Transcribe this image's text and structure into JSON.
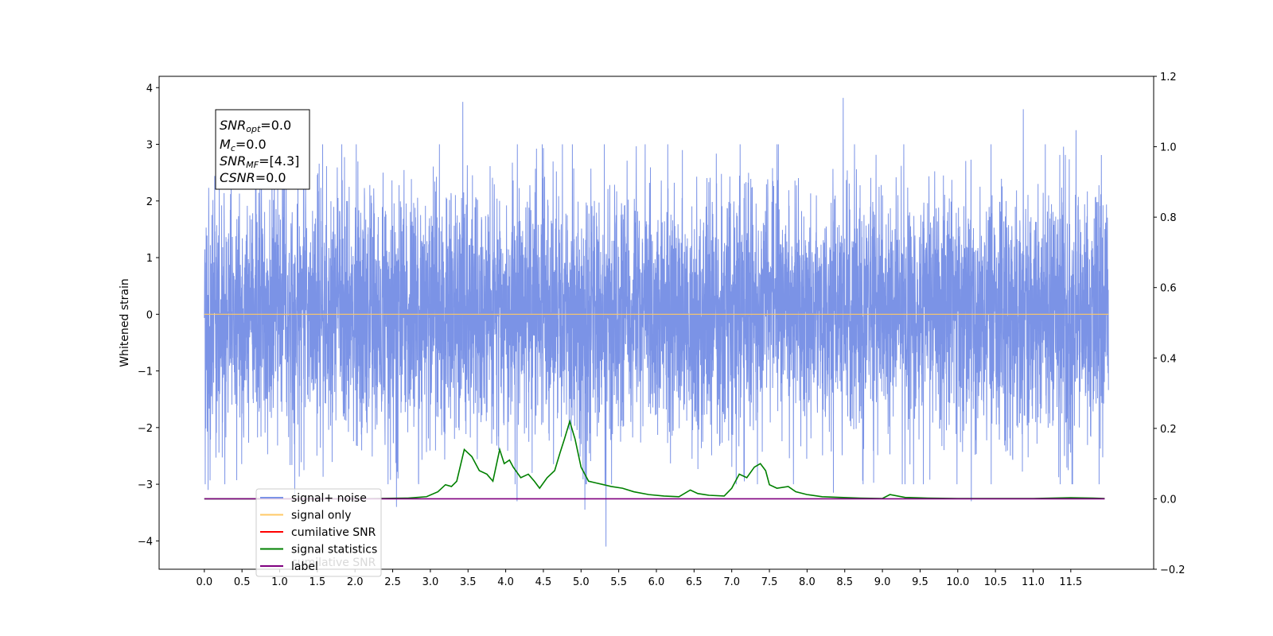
{
  "chart_data": {
    "type": "line",
    "xlabel": "",
    "ylabel": "Whitened strain",
    "y2label": "",
    "xlim": [
      -0.6,
      12.6
    ],
    "ylim": [
      -4.5,
      4.2
    ],
    "y2lim": [
      -0.2,
      1.2
    ],
    "grid": false,
    "legend_position": "lower-left",
    "x_ticks": [
      "0.0",
      "0.5",
      "1.0",
      "1.5",
      "2.0",
      "2.5",
      "3.0",
      "3.5",
      "4.0",
      "4.5",
      "5.0",
      "5.5",
      "6.0",
      "6.5",
      "7.0",
      "7.5",
      "8.0",
      "8.5",
      "9.0",
      "9.5",
      "10.0",
      "10.5",
      "11.0",
      "11.5"
    ],
    "y_ticks": [
      "−4",
      "−3",
      "−2",
      "−1",
      "0",
      "1",
      "2",
      "3",
      "4"
    ],
    "y_tick_values": [
      -4,
      -3,
      -2,
      -1,
      0,
      1,
      2,
      3,
      4
    ],
    "y2_ticks": [
      "−0.2",
      "0.0",
      "0.2",
      "0.4",
      "0.6",
      "0.8",
      "1.0",
      "1.2"
    ],
    "y2_tick_values": [
      -0.2,
      0.0,
      0.2,
      0.4,
      0.6,
      0.8,
      1.0,
      1.2
    ],
    "annotation": {
      "snr_opt": "=0.0",
      "mc": "=0.0",
      "snr_mf": "=[4.3]",
      "csnr": "=0.0"
    },
    "legend": [
      {
        "label": "signal+ noise",
        "color": "#7b93e6"
      },
      {
        "label": "signal only",
        "color": "#ffc966"
      },
      {
        "label": "cumilative SNR",
        "color": "#ff0000"
      },
      {
        "label": "signal statistics",
        "color": "#008000"
      },
      {
        "label": "label",
        "color": "#800080"
      }
    ],
    "hidden_legend_text": "cumilative SNR",
    "series": [
      {
        "name": "signal+ noise",
        "axis": "left",
        "color": "#7b93e6",
        "x_range": [
          0.0,
          12.0
        ],
        "typical_amplitude": 1.3,
        "peaks": [
          {
            "x": 3.43,
            "y": 3.75
          },
          {
            "x": 5.33,
            "y": 3.55
          },
          {
            "x": 8.48,
            "y": 3.82
          },
          {
            "x": 10.87,
            "y": 3.62
          },
          {
            "x": 11.57,
            "y": 3.25
          },
          {
            "x": 5.33,
            "y": -4.1
          },
          {
            "x": 2.55,
            "y": -3.4
          },
          {
            "x": 5.05,
            "y": -3.45
          },
          {
            "x": 10.18,
            "y": -3.3
          },
          {
            "x": 4.15,
            "y": -3.3
          },
          {
            "x": 1.2,
            "y": -3.2
          },
          {
            "x": 8.35,
            "y": -3.15
          },
          {
            "x": 0.05,
            "y": -3.1
          }
        ]
      },
      {
        "name": "signal only",
        "axis": "left",
        "color": "#ffc966",
        "x": [
          0.0,
          12.0
        ],
        "y": [
          0.0,
          0.0
        ]
      },
      {
        "name": "signal statistics",
        "axis": "right",
        "color": "#008000",
        "x": [
          0.0,
          1.0,
          2.0,
          2.7,
          2.95,
          3.1,
          3.2,
          3.28,
          3.35,
          3.45,
          3.55,
          3.65,
          3.75,
          3.83,
          3.92,
          3.98,
          4.05,
          4.1,
          4.2,
          4.3,
          4.38,
          4.45,
          4.55,
          4.65,
          4.72,
          4.78,
          4.85,
          4.92,
          5.0,
          5.1,
          5.2,
          5.3,
          5.4,
          5.55,
          5.7,
          5.9,
          6.1,
          6.3,
          6.45,
          6.55,
          6.7,
          6.9,
          7.0,
          7.1,
          7.2,
          7.3,
          7.38,
          7.45,
          7.5,
          7.6,
          7.75,
          7.85,
          8.0,
          8.2,
          8.45,
          8.7,
          9.0,
          9.1,
          9.3,
          9.6,
          10.0,
          10.5,
          11.0,
          11.5,
          11.8,
          11.95
        ],
        "y": [
          0.0,
          0.0,
          0.0,
          0.002,
          0.006,
          0.02,
          0.04,
          0.035,
          0.05,
          0.14,
          0.12,
          0.08,
          0.07,
          0.05,
          0.14,
          0.1,
          0.11,
          0.09,
          0.06,
          0.07,
          0.05,
          0.03,
          0.06,
          0.08,
          0.13,
          0.17,
          0.22,
          0.17,
          0.09,
          0.05,
          0.045,
          0.04,
          0.035,
          0.03,
          0.02,
          0.012,
          0.008,
          0.006,
          0.025,
          0.015,
          0.01,
          0.008,
          0.03,
          0.07,
          0.06,
          0.09,
          0.1,
          0.08,
          0.04,
          0.03,
          0.035,
          0.02,
          0.012,
          0.006,
          0.004,
          0.002,
          0.001,
          0.012,
          0.004,
          0.002,
          0.001,
          0.001,
          0.001,
          0.003,
          0.002,
          0.001
        ]
      },
      {
        "name": "label",
        "axis": "right",
        "color": "#800080",
        "x": [
          0.0,
          11.95
        ],
        "y": [
          0.0,
          0.0
        ]
      }
    ]
  }
}
